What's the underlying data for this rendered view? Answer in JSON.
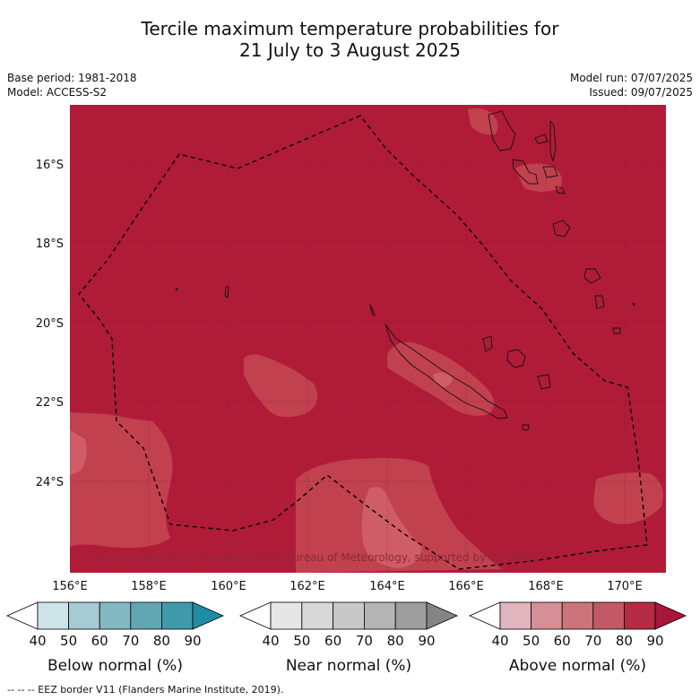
{
  "title": {
    "line1": "Tercile maximum temperature probabilities for",
    "line2": "21 July to 3 August 2025"
  },
  "meta": {
    "base_period": "Base period: 1981-2018",
    "model": "Model: ACCESS-S2",
    "model_run": "Model run: 07/07/2025",
    "issued": "Issued: 09/07/2025"
  },
  "map": {
    "lat_labels": [
      "16°S",
      "18°S",
      "20°S",
      "22°S",
      "24°S"
    ],
    "lon_labels": [
      "156°E",
      "158°E",
      "160°E",
      "162°E",
      "164°E",
      "166°E",
      "168°E",
      "170°E"
    ],
    "copyright": "© Commonwealth of Australia 2025, Bureau of Meteorology, supported by COSPPac",
    "colors": {
      "above_90": "#b01c38",
      "above_80": "#c2414f",
      "above_70": "#cf5d68",
      "coast": "#111111",
      "gridline": "#5a1020"
    }
  },
  "legends": [
    {
      "name": "Below normal (%)",
      "ticks": [
        "40",
        "50",
        "60",
        "70",
        "80",
        "90"
      ],
      "colors": [
        "#ffffff",
        "#cde3e8",
        "#a6cbd2",
        "#84b8c3",
        "#62a6b4",
        "#3e9aab",
        "#1e8da3"
      ]
    },
    {
      "name": "Near normal (%)",
      "ticks": [
        "40",
        "50",
        "60",
        "70",
        "80",
        "90"
      ],
      "colors": [
        "#ffffff",
        "#e6e6e6",
        "#d8d8d8",
        "#c8c8c8",
        "#b4b4b4",
        "#9e9e9e",
        "#848484"
      ]
    },
    {
      "name": "Above normal (%)",
      "ticks": [
        "40",
        "50",
        "60",
        "70",
        "80",
        "90"
      ],
      "colors": [
        "#ffffff",
        "#e0b5bd",
        "#d68f97",
        "#cc747c",
        "#c25966",
        "#b32b45",
        "#a8163a"
      ]
    }
  ],
  "footer": "--  --  -- EEZ border V11 (Flanders Marine Institute, 2019)."
}
